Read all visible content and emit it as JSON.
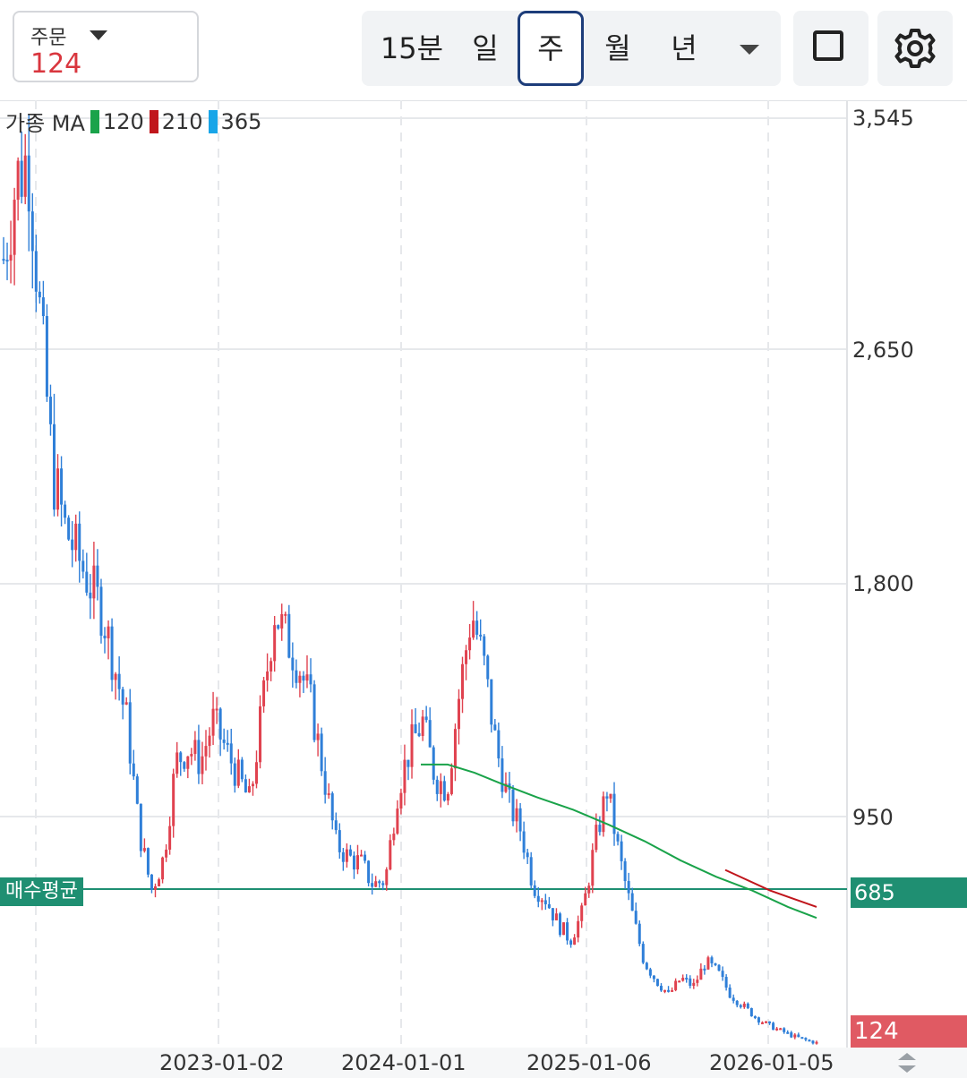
{
  "order": {
    "label": "주문",
    "value": "124"
  },
  "periods": [
    {
      "label": "15분",
      "active": false
    },
    {
      "label": "일",
      "active": false
    },
    {
      "label": "주",
      "active": true
    },
    {
      "label": "월",
      "active": false
    },
    {
      "label": "년",
      "active": false
    }
  ],
  "legend": {
    "prefix": "가종 MA",
    "ma": [
      {
        "label": "120",
        "color": "#1aa34a"
      },
      {
        "label": "210",
        "color": "#c0161c"
      },
      {
        "label": "365",
        "color": "#18a5e8"
      }
    ]
  },
  "colors": {
    "up": "#e0424f",
    "down": "#2f7fd8",
    "avg_line": "#1f8f72",
    "grid": "#e6e8eb"
  },
  "avg_line": {
    "label": "매수평균",
    "value": "685"
  },
  "current_price": "124",
  "chart_data": {
    "type": "candlestick",
    "y_ticks": [
      "3,545",
      "2,650",
      "1,800",
      "950"
    ],
    "y_tick_values": [
      3545,
      2650,
      1800,
      950
    ],
    "x_ticks": [
      "2023-01-02",
      "2024-01-01",
      "2025-01-06",
      "2026-01-05"
    ],
    "avg_price": 685,
    "current_price": 124,
    "close_series": [
      3000,
      3300,
      3400,
      2750,
      2200,
      2000,
      1900,
      1800,
      1700,
      1500,
      1300,
      900,
      680,
      800,
      1150,
      1200,
      1150,
      1300,
      1200,
      1100,
      1000,
      1350,
      1700,
      1600,
      1500,
      1350,
      1100,
      850,
      800,
      780,
      700,
      720,
      1050,
      1200,
      1300,
      1100,
      1050,
      1400,
      1700,
      1500,
      1200,
      1000,
      900,
      700,
      650,
      560,
      500,
      600,
      850,
      1050,
      800,
      600,
      420,
      350,
      300,
      360,
      330,
      420,
      380,
      300,
      260,
      220,
      190,
      170,
      150,
      135,
      124
    ],
    "ma120": [
      [
        470,
        1140
      ],
      [
        500,
        1140
      ],
      [
        530,
        1110
      ],
      [
        560,
        1070
      ],
      [
        600,
        1020
      ],
      [
        640,
        975
      ],
      [
        680,
        920
      ],
      [
        720,
        860
      ],
      [
        760,
        790
      ],
      [
        800,
        730
      ],
      [
        840,
        680
      ],
      [
        880,
        620
      ],
      [
        912,
        580
      ]
    ],
    "ma210": [
      [
        810,
        755
      ],
      [
        860,
        680
      ],
      [
        912,
        620
      ]
    ]
  }
}
